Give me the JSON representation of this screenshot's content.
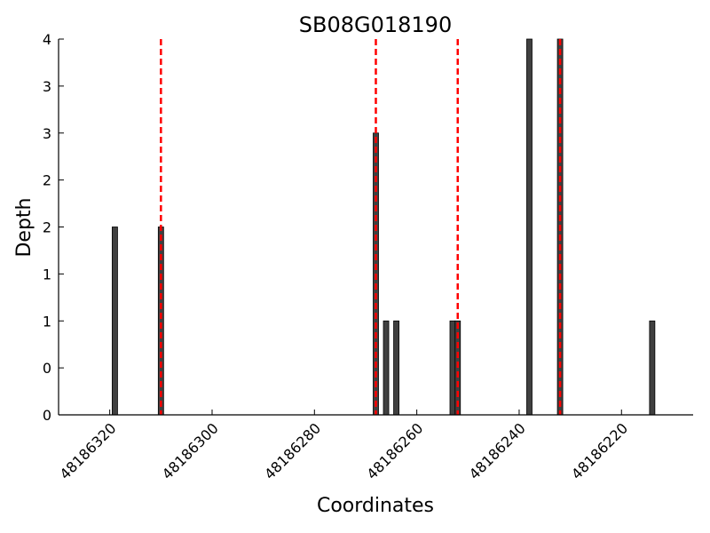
{
  "chart_data": {
    "type": "bar",
    "title": "SB08G018190",
    "xlabel": "Coordinates",
    "ylabel": "Depth",
    "x_reversed": true,
    "xlim": [
      48186330,
      48186206
    ],
    "ylim": [
      0,
      4
    ],
    "xticks": [
      48186320,
      48186300,
      48186280,
      48186260,
      48186240,
      48186220
    ],
    "xtick_labels": [
      "48186320",
      "48186300",
      "48186280",
      "48186260",
      "48186240",
      "48186220"
    ],
    "yticks": [
      0,
      0.5,
      1,
      1.5,
      2,
      2.5,
      3,
      3.5,
      4
    ],
    "ytick_labels": [
      "0",
      "0",
      "1",
      "1",
      "2",
      "2",
      "3",
      "3",
      "4"
    ],
    "bar_color": "#404040",
    "marker_color": "#ff0000",
    "series": [
      {
        "x": [
          48186319,
          48186310,
          48186268,
          48186266,
          48186264,
          48186253,
          48186252,
          48186238,
          48186232,
          48186214
        ],
        "values": [
          2,
          2,
          3,
          1,
          1,
          1,
          1,
          4,
          4,
          1
        ]
      }
    ],
    "markers_x": [
      48186310,
      48186268,
      48186252,
      48186232
    ],
    "grid": false
  }
}
